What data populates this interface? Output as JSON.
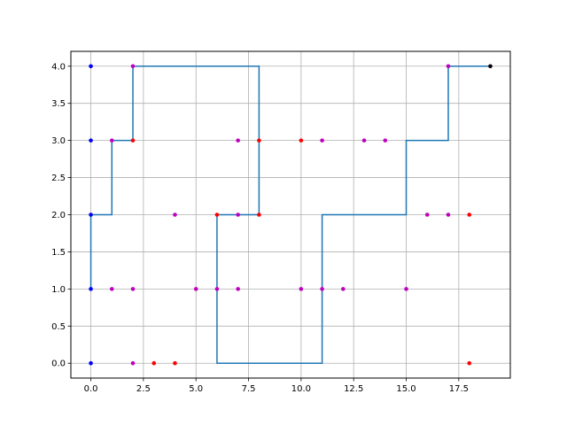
{
  "chart_data": {
    "type": "scatter",
    "title": "",
    "xlabel": "",
    "ylabel": "",
    "xlim": [
      -0.95,
      19.95
    ],
    "ylim": [
      -0.2,
      4.2
    ],
    "grid": true,
    "x_ticks": [
      0.0,
      2.5,
      5.0,
      7.5,
      10.0,
      12.5,
      15.0,
      17.5
    ],
    "x_tick_labels": [
      "0.0",
      "2.5",
      "5.0",
      "7.5",
      "10.0",
      "12.5",
      "15.0",
      "17.5"
    ],
    "y_ticks": [
      0.0,
      0.5,
      1.0,
      1.5,
      2.0,
      2.5,
      3.0,
      3.5,
      4.0
    ],
    "y_tick_labels": [
      "0.0",
      "0.5",
      "1.0",
      "1.5",
      "2.0",
      "2.5",
      "3.0",
      "3.5",
      "4.0"
    ],
    "path": {
      "color": "#1f77b4",
      "points": [
        [
          0,
          1
        ],
        [
          0,
          2
        ],
        [
          1,
          2
        ],
        [
          1,
          3
        ],
        [
          2,
          3
        ],
        [
          2,
          4
        ],
        [
          8,
          4
        ],
        [
          8,
          2
        ],
        [
          6,
          2
        ],
        [
          6,
          0
        ],
        [
          11,
          0
        ],
        [
          11,
          2
        ],
        [
          15,
          2
        ],
        [
          15,
          3
        ],
        [
          17,
          3
        ],
        [
          17,
          4
        ],
        [
          19,
          4
        ]
      ]
    },
    "series": [
      {
        "color": "#0000ff",
        "points": [
          [
            0,
            0
          ],
          [
            0,
            1
          ],
          [
            0,
            2
          ],
          [
            0,
            3
          ],
          [
            0,
            4
          ]
        ]
      },
      {
        "color": "#bf00bf",
        "points": [
          [
            1,
            3
          ],
          [
            1,
            1
          ],
          [
            2,
            1
          ],
          [
            2,
            0
          ],
          [
            2,
            4
          ],
          [
            4,
            2
          ],
          [
            5,
            1
          ],
          [
            6,
            1
          ],
          [
            7,
            2
          ],
          [
            7,
            3
          ],
          [
            7,
            1
          ],
          [
            10,
            1
          ],
          [
            11,
            3
          ],
          [
            11,
            1
          ],
          [
            12,
            1
          ],
          [
            13,
            3
          ],
          [
            14,
            3
          ],
          [
            15,
            1
          ],
          [
            16,
            2
          ],
          [
            17,
            2
          ],
          [
            17,
            4
          ]
        ]
      },
      {
        "color": "#ff0000",
        "points": [
          [
            2,
            3
          ],
          [
            3,
            0
          ],
          [
            4,
            0
          ],
          [
            6,
            2
          ],
          [
            8,
            3
          ],
          [
            8,
            2
          ],
          [
            10,
            3
          ],
          [
            18,
            2
          ],
          [
            18,
            0
          ]
        ]
      },
      {
        "color": "#000000",
        "points": [
          [
            19,
            4
          ]
        ]
      }
    ]
  }
}
